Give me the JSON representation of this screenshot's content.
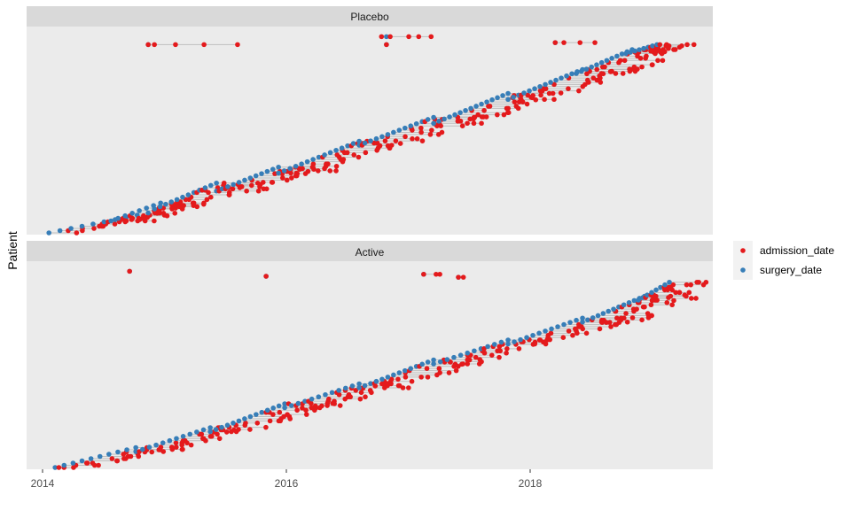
{
  "chart_data": {
    "type": "scatter",
    "title": "",
    "xlabel": "",
    "ylabel": "Patient",
    "x_tick_labels": [
      "2014",
      "2016",
      "2018"
    ],
    "x_ticks": [
      2014,
      2016,
      2018
    ],
    "xlim": [
      2013.92,
      2019.45
    ],
    "grid": false,
    "legend_position": "right",
    "colors": {
      "admission_date": "#e41a1c",
      "surgery_date": "#377eb8",
      "segment": "#bfbfbf",
      "panel_bg": "#ebebeb",
      "strip_bg": "#d9d9d9"
    },
    "series": [
      {
        "name": "admission_date",
        "color": "#e41a1c"
      },
      {
        "name": "surgery_date",
        "color": "#377eb8"
      }
    ],
    "panels": [
      {
        "name": "Placebo",
        "outliers": [
          {
            "y": 0.945,
            "surgery": 2014.9,
            "admissions": [
              2014.9,
              2014.95,
              2015.12,
              2015.35,
              2015.62
            ]
          },
          {
            "y": 0.985,
            "surgery": 2016.82,
            "admissions": [
              2016.78,
              2016.85,
              2017.0,
              2017.08,
              2017.18
            ]
          },
          {
            "y": 0.945,
            "surgery": 2016.82,
            "admissions": [
              2016.82
            ]
          },
          {
            "y": 0.955,
            "surgery": 2018.18,
            "admissions": [
              2018.18,
              2018.25,
              2018.38,
              2018.5
            ]
          }
        ],
        "clusters": [
          {
            "y0": 0.0,
            "y1": 0.1,
            "x0": 2014.1,
            "x1": 2014.9,
            "spread": 0.22,
            "nS": 10,
            "nA": 24
          },
          {
            "y0": 0.06,
            "y1": 0.15,
            "x0": 2014.6,
            "x1": 2015.0,
            "spread": 0.35,
            "nS": 8,
            "nA": 30
          },
          {
            "y0": 0.12,
            "y1": 0.25,
            "x0": 2014.95,
            "x1": 2015.45,
            "spread": 0.35,
            "nS": 12,
            "nA": 30
          },
          {
            "y0": 0.21,
            "y1": 0.33,
            "x0": 2015.45,
            "x1": 2015.95,
            "spread": 0.35,
            "nS": 12,
            "nA": 34
          },
          {
            "y0": 0.3,
            "y1": 0.46,
            "x0": 2015.95,
            "x1": 2016.6,
            "spread": 0.4,
            "nS": 15,
            "nA": 32
          },
          {
            "y0": 0.44,
            "y1": 0.58,
            "x0": 2016.6,
            "x1": 2017.2,
            "spread": 0.4,
            "nS": 14,
            "nA": 34
          },
          {
            "y0": 0.55,
            "y1": 0.7,
            "x0": 2017.2,
            "x1": 2017.8,
            "spread": 0.38,
            "nS": 15,
            "nA": 32
          },
          {
            "y0": 0.67,
            "y1": 0.82,
            "x0": 2017.8,
            "x1": 2018.4,
            "spread": 0.4,
            "nS": 15,
            "nA": 32
          },
          {
            "y0": 0.8,
            "y1": 0.92,
            "x0": 2018.35,
            "x1": 2018.8,
            "spread": 0.45,
            "nS": 12,
            "nA": 36
          },
          {
            "y0": 0.9,
            "y1": 0.945,
            "x0": 2018.75,
            "x1": 2019.0,
            "spread": 0.28,
            "nS": 8,
            "nA": 26
          }
        ]
      },
      {
        "name": "Active",
        "outliers": [
          {
            "y": 0.985,
            "surgery": 2014.75,
            "admissions": [
              2014.75
            ]
          },
          {
            "y": 0.96,
            "surgery": 2015.85,
            "admissions": [
              2015.85
            ]
          },
          {
            "y": 0.97,
            "surgery": 2017.12,
            "admissions": [
              2017.12,
              2017.22,
              2017.25
            ]
          },
          {
            "y": 0.955,
            "surgery": 2017.4,
            "admissions": [
              2017.4,
              2017.44
            ]
          }
        ],
        "clusters": [
          {
            "y0": 0.0,
            "y1": 0.1,
            "x0": 2014.15,
            "x1": 2014.8,
            "spread": 0.3,
            "nS": 10,
            "nA": 24
          },
          {
            "y0": 0.08,
            "y1": 0.2,
            "x0": 2014.8,
            "x1": 2015.4,
            "spread": 0.35,
            "nS": 12,
            "nA": 30
          },
          {
            "y0": 0.18,
            "y1": 0.32,
            "x0": 2015.4,
            "x1": 2016.0,
            "spread": 0.4,
            "nS": 14,
            "nA": 34
          },
          {
            "y0": 0.3,
            "y1": 0.42,
            "x0": 2016.0,
            "x1": 2016.6,
            "spread": 0.38,
            "nS": 12,
            "nA": 32
          },
          {
            "y0": 0.4,
            "y1": 0.54,
            "x0": 2016.6,
            "x1": 2017.2,
            "spread": 0.4,
            "nS": 14,
            "nA": 34
          },
          {
            "y0": 0.52,
            "y1": 0.64,
            "x0": 2017.2,
            "x1": 2017.8,
            "spread": 0.35,
            "nS": 12,
            "nA": 30
          },
          {
            "y0": 0.62,
            "y1": 0.75,
            "x0": 2017.8,
            "x1": 2018.4,
            "spread": 0.42,
            "nS": 13,
            "nA": 36
          },
          {
            "y0": 0.73,
            "y1": 0.86,
            "x0": 2018.4,
            "x1": 2018.9,
            "spread": 0.45,
            "nS": 13,
            "nA": 36
          },
          {
            "y0": 0.84,
            "y1": 0.93,
            "x0": 2018.85,
            "x1": 2019.1,
            "spread": 0.3,
            "nS": 8,
            "nA": 28
          }
        ]
      }
    ]
  }
}
